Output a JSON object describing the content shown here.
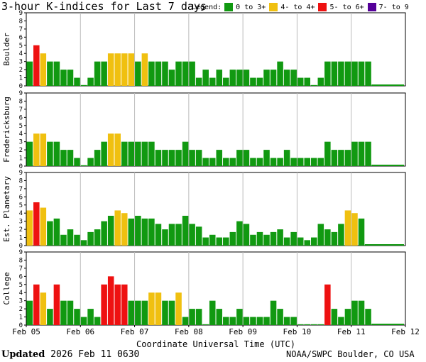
{
  "header": {
    "title": "3-hour K-indices for Last 7 days",
    "legend_label": "Legend:",
    "legend": [
      {
        "label": "0 to 3+",
        "color": "#119911"
      },
      {
        "label": "4- to 4+",
        "color": "#f0c010"
      },
      {
        "label": "5- to 6+",
        "color": "#ee1111"
      },
      {
        "label": "7- to 9",
        "color": "#550099"
      }
    ]
  },
  "footer": {
    "updated_label": "Updated",
    "updated_value": "2026 Feb 11 0630",
    "credit": "NOAA/SWPC Boulder, CO USA"
  },
  "chart_data": {
    "type": "bar",
    "xlabel": "Coordinate Universal Time (UTC)",
    "x_ticks": [
      "Feb 05",
      "Feb 06",
      "Feb 07",
      "Feb 08",
      "Feb 09",
      "Feb 10",
      "Feb 11",
      "Feb 12"
    ],
    "slots_per_day": 8,
    "ylim": [
      0,
      9
    ],
    "y_ticks": [
      "0",
      "1",
      "2",
      "3",
      "4",
      "5",
      "6",
      "7",
      "8",
      "9"
    ],
    "color_thresholds": {
      "green_below": 4,
      "yellow_below": 5,
      "red_below": 7
    },
    "colors": {
      "green": "#119911",
      "yellow": "#f0c010",
      "red": "#ee1111",
      "purple": "#550099"
    },
    "panels": [
      {
        "name": "Boulder",
        "values": [
          3,
          5,
          4,
          3,
          3,
          2,
          2,
          1,
          0,
          1,
          3,
          3,
          4,
          4,
          4,
          4,
          3,
          4,
          3,
          3,
          3,
          2,
          3,
          3,
          3,
          1,
          2,
          1,
          2,
          1,
          2,
          2,
          2,
          1,
          1,
          2,
          2,
          3,
          2,
          2,
          1,
          1,
          0,
          1,
          3,
          3,
          3,
          3,
          3,
          3,
          3
        ]
      },
      {
        "name": "Fredericksburg",
        "values": [
          3,
          4,
          4,
          3,
          3,
          2,
          2,
          1,
          0,
          1,
          2,
          3,
          4,
          4,
          3,
          3,
          3,
          3,
          3,
          2,
          2,
          2,
          2,
          3,
          2,
          2,
          1,
          1,
          2,
          1,
          1,
          2,
          2,
          1,
          1,
          2,
          1,
          1,
          2,
          1,
          1,
          1,
          1,
          1,
          3,
          2,
          2,
          2,
          3,
          3,
          3
        ]
      },
      {
        "name": "Est. Planetary",
        "values": [
          4.33,
          5.33,
          4.67,
          3,
          3.33,
          1.33,
          2,
          1.33,
          0.67,
          1.67,
          2,
          3,
          3.67,
          4.33,
          4,
          3.33,
          3.67,
          3.33,
          3.33,
          2.67,
          2,
          2.67,
          2.67,
          3.67,
          2.67,
          2.33,
          1,
          1.33,
          1,
          1,
          1.67,
          3,
          2.67,
          1.33,
          1.67,
          1.33,
          1.67,
          2,
          1,
          1.67,
          1,
          0.67,
          1,
          2.67,
          2,
          1.67,
          2.67,
          4.33,
          4,
          3.33
        ]
      },
      {
        "name": "College",
        "values": [
          3,
          5,
          4,
          2,
          5,
          3,
          3,
          2,
          1,
          2,
          1,
          5,
          6,
          5,
          5,
          3,
          3,
          3,
          4,
          4,
          3,
          3,
          4,
          1,
          2,
          2,
          0,
          3,
          2,
          1,
          1,
          2,
          1,
          1,
          1,
          1,
          3,
          2,
          1,
          1,
          0,
          0,
          0,
          0,
          5,
          2,
          1,
          2,
          3,
          3,
          2
        ]
      }
    ]
  }
}
